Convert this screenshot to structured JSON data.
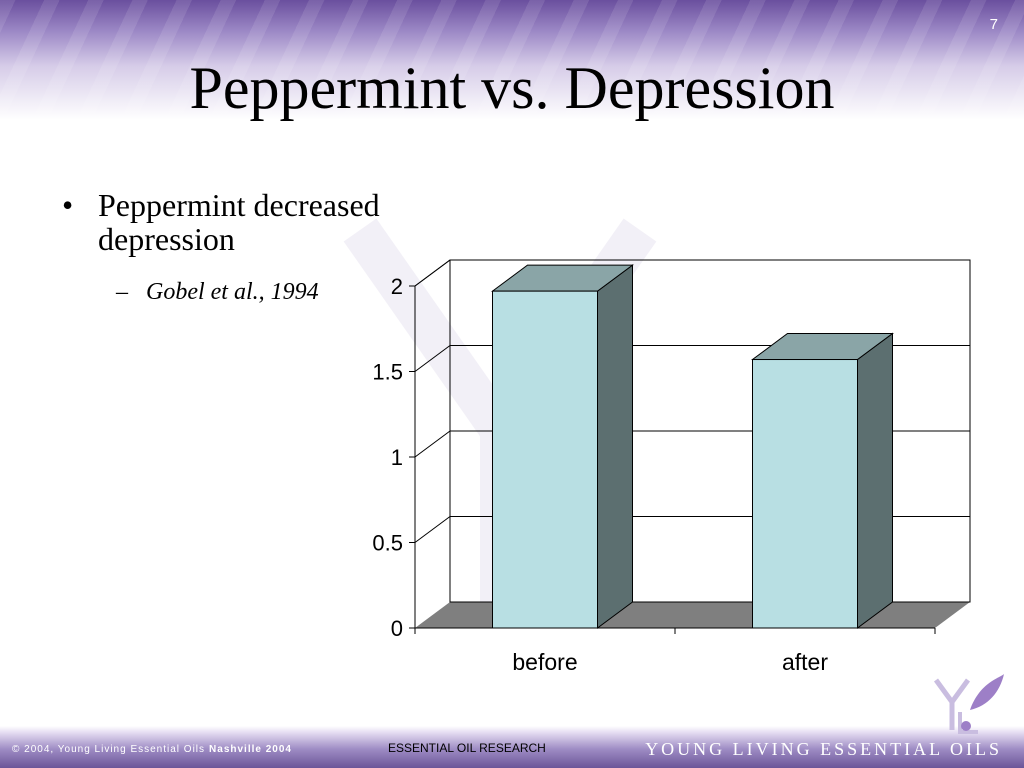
{
  "slide": {
    "number": "7",
    "title": "Peppermint vs. Depression"
  },
  "bullets": {
    "level1_marker": "•",
    "level1_text": "Peppermint decreased depression",
    "level2_marker": "–",
    "level2_text": "Gobel et al., 1994"
  },
  "chart_data": {
    "type": "bar",
    "categories": [
      "before",
      "after"
    ],
    "values": [
      1.97,
      1.57
    ],
    "ylim": [
      0,
      2
    ],
    "yticks": [
      "0",
      "0.5",
      "1",
      "1.5",
      "2"
    ],
    "grid": true,
    "three_d": true,
    "colors": {
      "front": "#b8dfe3",
      "side": "#5c6f70",
      "top": "#8aa5a7",
      "floor": "#7f7f7f"
    }
  },
  "footer": {
    "left_text": "© 2004, Young Living Essential Oils",
    "left_bold": "Nashville 2004",
    "center_text": "ESSENTIAL OIL RESEARCH",
    "right_text": "YOUNG LIVING ESSENTIAL OILS"
  },
  "theme": {
    "band_color": "#6a4f9e"
  }
}
